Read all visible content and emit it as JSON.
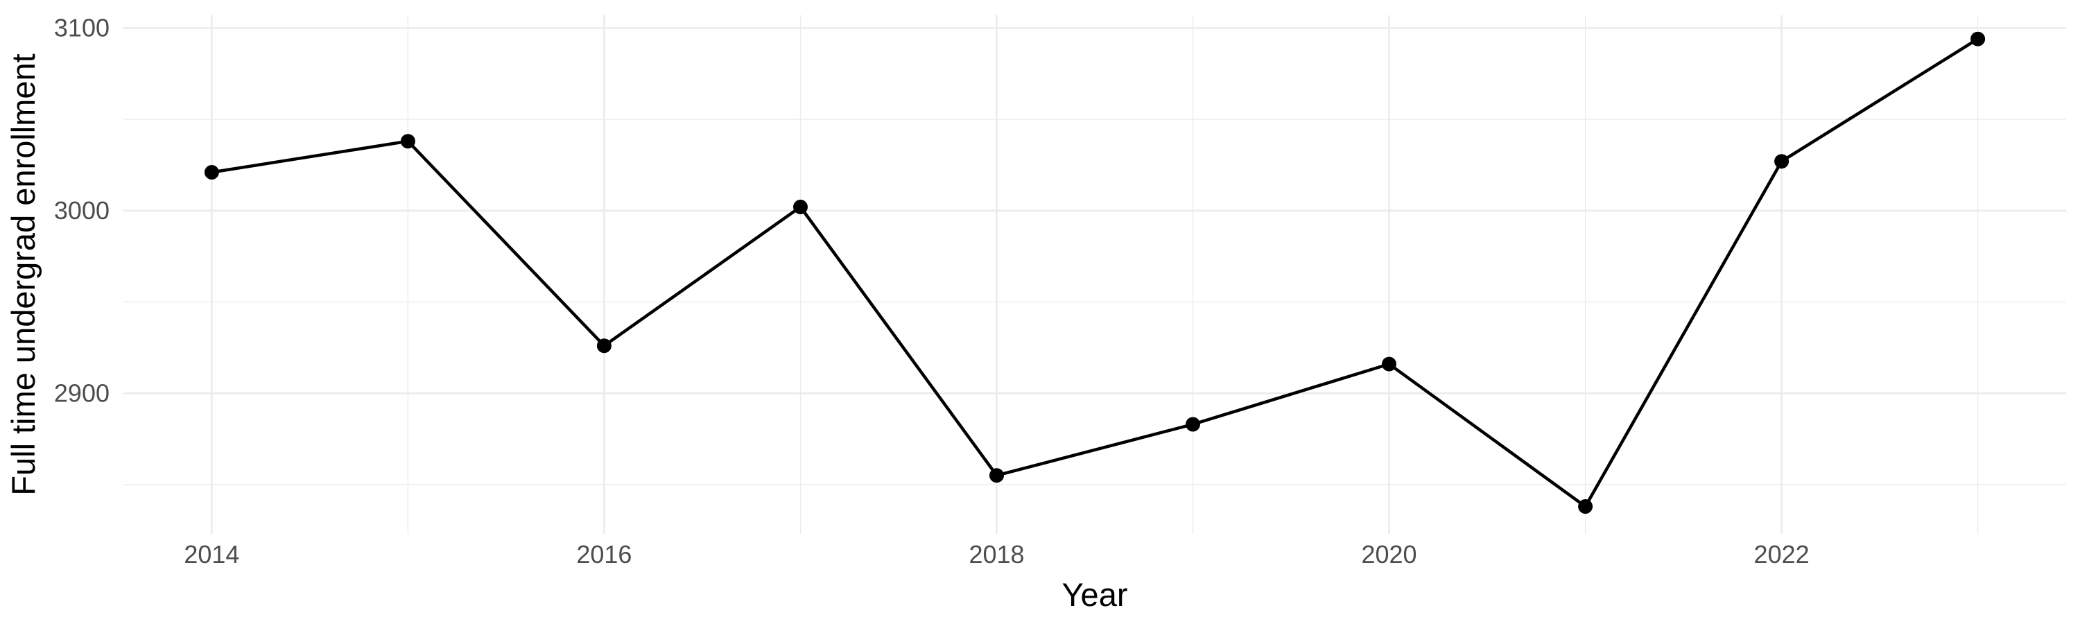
{
  "chart_data": {
    "type": "line",
    "title": "",
    "xlabel": "Year",
    "ylabel": "Full time undergrad enrollment",
    "x": [
      2014,
      2015,
      2016,
      2017,
      2018,
      2019,
      2020,
      2021,
      2022,
      2023
    ],
    "series": [
      {
        "name": "Full time undergrad enrollment",
        "values": [
          3021,
          3038,
          2926,
          3002,
          2855,
          2883,
          2916,
          2838,
          3027,
          3094
        ]
      }
    ],
    "x_ticks_major": [
      2014,
      2016,
      2018,
      2020,
      2022
    ],
    "x_ticks_minor": [
      2015,
      2017,
      2019,
      2021,
      2023
    ],
    "y_ticks_major": [
      2900,
      3000,
      3100
    ],
    "y_ticks_minor": [
      2850,
      2950,
      3050
    ],
    "xlim": [
      2013.55,
      2023.45
    ],
    "ylim": [
      2823,
      3107
    ],
    "grid": "major-and-minor",
    "legend": "none",
    "point_marker": "circle",
    "colors": {
      "line": "#000000",
      "point": "#000000",
      "grid_major": "#ebebeb",
      "grid_minor": "#ebebeb",
      "tick_label": "#4d4d4d",
      "axis_title": "#000000",
      "background": "#ffffff"
    }
  }
}
